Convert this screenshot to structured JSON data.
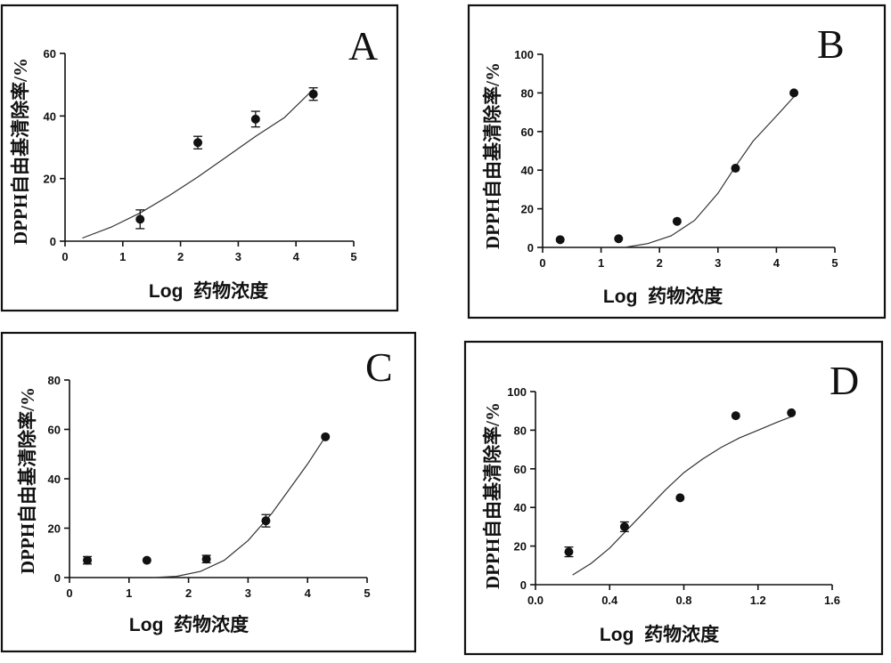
{
  "chart_data": [
    {
      "type": "scatter",
      "panel": "A",
      "title": "",
      "xlabel": "Log  药物浓度",
      "ylabel": "DPPH自由基清除率/%",
      "xlim": [
        0,
        5
      ],
      "ylim": [
        0,
        60
      ],
      "xticks": [
        0,
        1,
        2,
        3,
        4,
        5
      ],
      "yticks": [
        0,
        20,
        40,
        60
      ],
      "xtick_labels": [
        "0",
        "1",
        "2",
        "3",
        "4",
        "5"
      ],
      "ytick_labels": [
        "0",
        "20",
        "40",
        "60"
      ],
      "grid": false,
      "points": [
        {
          "x": 1.3,
          "y": 7,
          "err": 3
        },
        {
          "x": 2.3,
          "y": 31.5,
          "err": 2
        },
        {
          "x": 3.3,
          "y": 39,
          "err": 2.5
        },
        {
          "x": 4.3,
          "y": 47,
          "err": 2
        }
      ],
      "fit_curve": [
        {
          "x": 0.3,
          "y": 1
        },
        {
          "x": 0.8,
          "y": 4.5
        },
        {
          "x": 1.3,
          "y": 9
        },
        {
          "x": 1.8,
          "y": 14.5
        },
        {
          "x": 2.3,
          "y": 20.5
        },
        {
          "x": 2.8,
          "y": 27
        },
        {
          "x": 3.3,
          "y": 33.5
        },
        {
          "x": 3.8,
          "y": 39.5
        },
        {
          "x": 4.3,
          "y": 48.5
        }
      ]
    },
    {
      "type": "scatter",
      "panel": "B",
      "title": "",
      "xlabel": "Log  药物浓度",
      "ylabel": "DPPH自由基清除率/%",
      "xlim": [
        0,
        5
      ],
      "ylim": [
        0,
        100
      ],
      "xticks": [
        0,
        1,
        2,
        3,
        4,
        5
      ],
      "yticks": [
        0,
        20,
        40,
        60,
        80,
        100
      ],
      "xtick_labels": [
        "0",
        "1",
        "2",
        "3",
        "4",
        "5"
      ],
      "ytick_labels": [
        "0",
        "20",
        "40",
        "60",
        "80",
        "100"
      ],
      "grid": false,
      "points": [
        {
          "x": 0.3,
          "y": 4,
          "err": 0
        },
        {
          "x": 1.3,
          "y": 4.5,
          "err": 0
        },
        {
          "x": 2.3,
          "y": 13.5,
          "err": 0
        },
        {
          "x": 3.3,
          "y": 41,
          "err": 0
        },
        {
          "x": 4.3,
          "y": 80,
          "err": 0
        }
      ],
      "fit_curve": [
        {
          "x": 1.4,
          "y": 0
        },
        {
          "x": 1.8,
          "y": 2
        },
        {
          "x": 2.2,
          "y": 6
        },
        {
          "x": 2.6,
          "y": 14
        },
        {
          "x": 3.0,
          "y": 28
        },
        {
          "x": 3.3,
          "y": 42
        },
        {
          "x": 3.6,
          "y": 55
        },
        {
          "x": 4.0,
          "y": 68
        },
        {
          "x": 4.3,
          "y": 78
        }
      ]
    },
    {
      "type": "scatter",
      "panel": "C",
      "title": "",
      "xlabel": "Log  药物浓度",
      "ylabel": "DPPH自由基清除率/%",
      "xlim": [
        0,
        5
      ],
      "ylim": [
        0,
        80
      ],
      "xticks": [
        0,
        1,
        2,
        3,
        4,
        5
      ],
      "yticks": [
        0,
        20,
        40,
        60,
        80
      ],
      "xtick_labels": [
        "0",
        "1",
        "2",
        "3",
        "4",
        "5"
      ],
      "ytick_labels": [
        "0",
        "20",
        "40",
        "60",
        "80"
      ],
      "grid": false,
      "points": [
        {
          "x": 0.3,
          "y": 7,
          "err": 1.5
        },
        {
          "x": 1.3,
          "y": 7,
          "err": 0
        },
        {
          "x": 2.3,
          "y": 7.5,
          "err": 1.5
        },
        {
          "x": 3.3,
          "y": 23,
          "err": 2.5
        },
        {
          "x": 4.3,
          "y": 57,
          "err": 0
        }
      ],
      "fit_curve": [
        {
          "x": 1.4,
          "y": 0
        },
        {
          "x": 1.8,
          "y": 0.5
        },
        {
          "x": 2.2,
          "y": 2.5
        },
        {
          "x": 2.6,
          "y": 7
        },
        {
          "x": 3.0,
          "y": 15
        },
        {
          "x": 3.4,
          "y": 26
        },
        {
          "x": 3.7,
          "y": 36
        },
        {
          "x": 4.0,
          "y": 46
        },
        {
          "x": 4.3,
          "y": 57
        }
      ]
    },
    {
      "type": "scatter",
      "panel": "D",
      "title": "",
      "xlabel": "Log  药物浓度",
      "ylabel": "DPPH自由基清除率/%",
      "xlim": [
        0,
        1.6
      ],
      "ylim": [
        0,
        100
      ],
      "xticks": [
        0,
        0.4,
        0.8,
        1.2,
        1.6
      ],
      "yticks": [
        0,
        20,
        40,
        60,
        80,
        100
      ],
      "xtick_labels": [
        "0.0",
        "0.4",
        "0.8",
        "1.2",
        "1.6"
      ],
      "ytick_labels": [
        "0",
        "20",
        "40",
        "60",
        "80",
        "100"
      ],
      "grid": false,
      "points": [
        {
          "x": 0.18,
          "y": 17,
          "err": 2.5
        },
        {
          "x": 0.48,
          "y": 30,
          "err": 2.5
        },
        {
          "x": 0.78,
          "y": 45,
          "err": 0
        },
        {
          "x": 1.08,
          "y": 87.5,
          "err": 0
        },
        {
          "x": 1.38,
          "y": 89,
          "err": 0
        }
      ],
      "fit_curve": [
        {
          "x": 0.2,
          "y": 5
        },
        {
          "x": 0.3,
          "y": 11
        },
        {
          "x": 0.4,
          "y": 19
        },
        {
          "x": 0.5,
          "y": 29
        },
        {
          "x": 0.6,
          "y": 39
        },
        {
          "x": 0.7,
          "y": 49
        },
        {
          "x": 0.8,
          "y": 58
        },
        {
          "x": 0.9,
          "y": 65
        },
        {
          "x": 1.0,
          "y": 71
        },
        {
          "x": 1.1,
          "y": 76
        },
        {
          "x": 1.2,
          "y": 80
        },
        {
          "x": 1.3,
          "y": 84
        },
        {
          "x": 1.38,
          "y": 87
        }
      ]
    }
  ]
}
